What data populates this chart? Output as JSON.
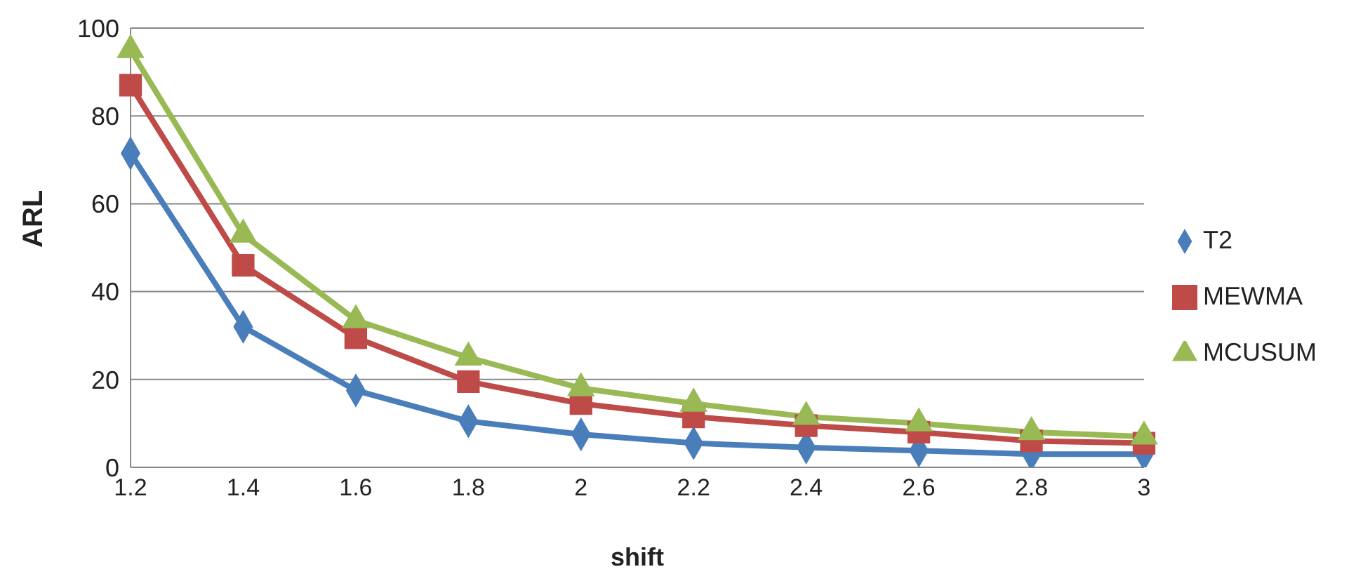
{
  "chart_data": {
    "type": "line",
    "xlabel": "shift",
    "ylabel": "ARL",
    "categories": [
      "1.2",
      "1.4",
      "1.6",
      "1.8",
      "2",
      "2.2",
      "2.4",
      "2.6",
      "2.8",
      "3"
    ],
    "series": [
      {
        "name": "T2",
        "color": "#4a7ebb",
        "marker": "diamond",
        "values": [
          71.5,
          32,
          17.5,
          10.5,
          7.5,
          5.5,
          4.5,
          3.8,
          3,
          3
        ]
      },
      {
        "name": "MEWMA",
        "color": "#be4b48",
        "marker": "square",
        "values": [
          87,
          46,
          29.5,
          19.5,
          14.5,
          11.5,
          9.5,
          8,
          6,
          5.5
        ]
      },
      {
        "name": "MCUSUM",
        "color": "#98b954",
        "marker": "triangle",
        "values": [
          95,
          53,
          33.5,
          25,
          18,
          14.5,
          11.5,
          10,
          8,
          7
        ]
      }
    ],
    "ylim": [
      0,
      100
    ],
    "yticks": [
      0,
      20,
      40,
      60,
      80,
      100
    ],
    "grid": "y",
    "legend": "right",
    "line_style": "solid"
  }
}
